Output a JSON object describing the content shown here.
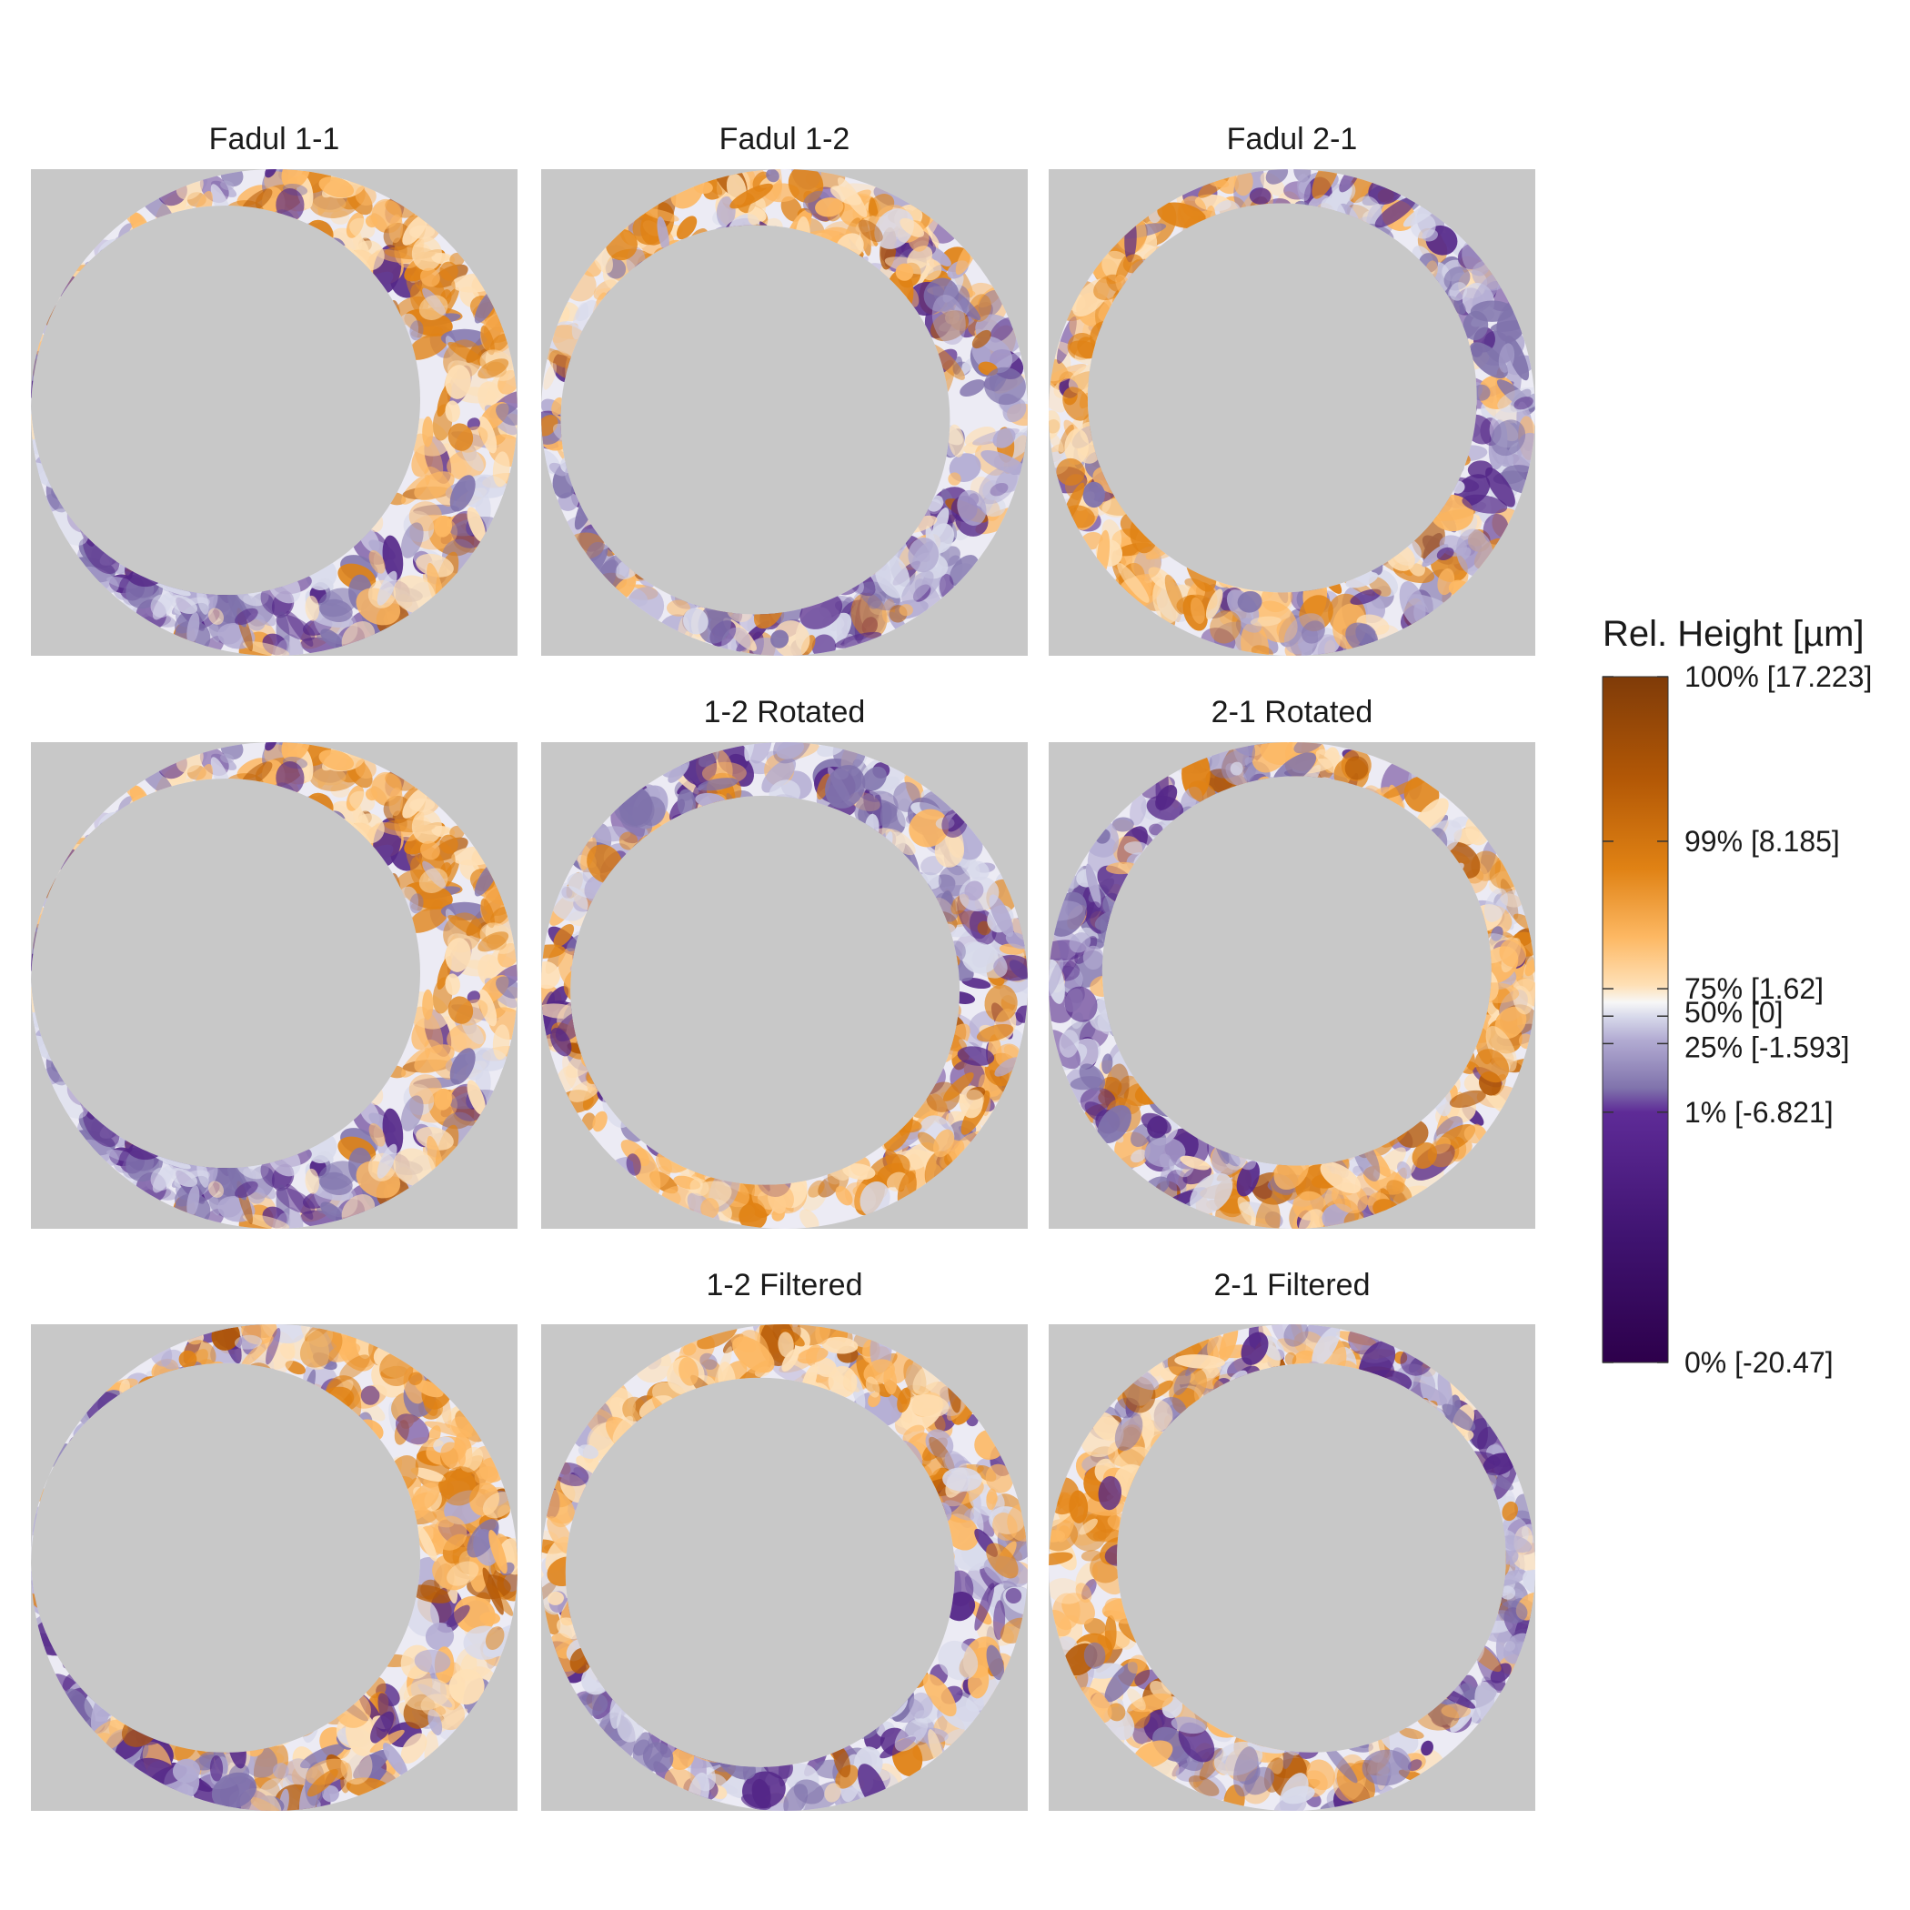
{
  "chart_data": {
    "type": "heatmap",
    "panels": [
      {
        "title": "Fadul 1-1",
        "row": 0,
        "col": 0,
        "inner_offset": [
          -0.2,
          -0.05
        ],
        "texture_seed": 11
      },
      {
        "title": "Fadul 1-2",
        "row": 0,
        "col": 1,
        "inner_offset": [
          -0.12,
          0.03
        ],
        "texture_seed": 23
      },
      {
        "title": "Fadul 2-1",
        "row": 0,
        "col": 2,
        "inner_offset": [
          -0.04,
          -0.06
        ],
        "texture_seed": 37
      },
      {
        "title": "",
        "row": 1,
        "col": 0,
        "inner_offset": [
          -0.2,
          -0.05
        ],
        "texture_seed": 11
      },
      {
        "title": "1-2 Rotated",
        "row": 1,
        "col": 1,
        "inner_offset": [
          -0.08,
          0.02
        ],
        "texture_seed": 51
      },
      {
        "title": "2-1 Rotated",
        "row": 1,
        "col": 2,
        "inner_offset": [
          0.02,
          -0.06
        ],
        "texture_seed": 64
      },
      {
        "title": "",
        "row": 2,
        "col": 0,
        "inner_offset": [
          -0.2,
          -0.04
        ],
        "texture_seed": 71
      },
      {
        "title": "1-2 Filtered",
        "row": 2,
        "col": 1,
        "inner_offset": [
          -0.1,
          0.02
        ],
        "texture_seed": 83
      },
      {
        "title": "2-1 Filtered",
        "row": 2,
        "col": 2,
        "inner_offset": [
          0.08,
          -0.04
        ],
        "texture_seed": 97
      }
    ],
    "legend": {
      "title": "Rel. Height [µm]",
      "breaks": [
        {
          "label": "100% [17.223]",
          "percentile": 100,
          "value": 17.223
        },
        {
          "label": "99% [8.185]",
          "percentile": 99,
          "value": 8.185
        },
        {
          "label": "75% [1.62]",
          "percentile": 75,
          "value": 1.62
        },
        {
          "label": "50% [0]",
          "percentile": 50,
          "value": 0
        },
        {
          "label": "25% [-1.593]",
          "percentile": 25,
          "value": -1.593
        },
        {
          "label": "1% [-6.821]",
          "percentile": 1,
          "value": -6.821
        },
        {
          "label": "0% [-20.47]",
          "percentile": 0,
          "value": -20.47
        }
      ],
      "colors": [
        "#2d004b",
        "#542788",
        "#8073ac",
        "#b2abd2",
        "#d8daeb",
        "#f7f7f7",
        "#fee0b6",
        "#fdb863",
        "#e08214",
        "#b35806",
        "#7f3b08"
      ]
    },
    "missing_color": "#c8c8c8"
  }
}
